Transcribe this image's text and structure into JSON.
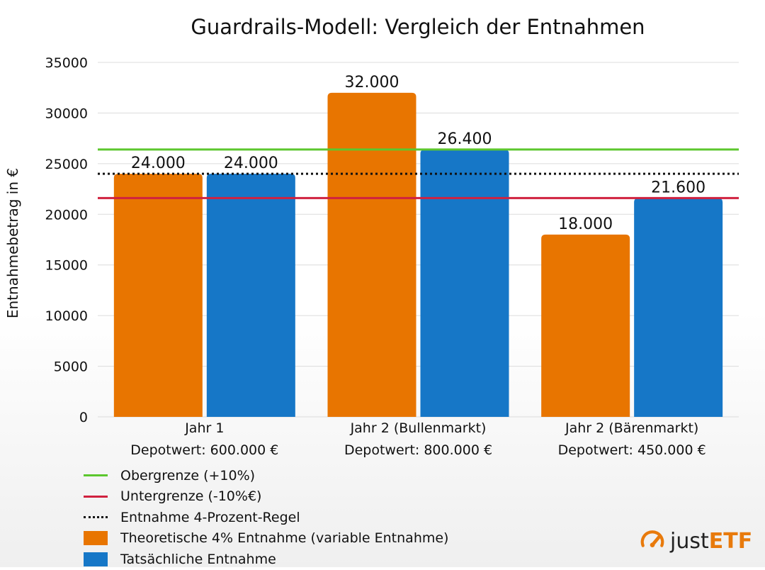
{
  "chart_data": {
    "type": "bar",
    "title": "Guardrails-Modell: Vergleich der Entnahmen",
    "ylabel": "Entnahmebetrag in €",
    "xlabel": "",
    "ylim": [
      0,
      35000
    ],
    "yticks": [
      0,
      5000,
      10000,
      15000,
      20000,
      25000,
      30000,
      35000
    ],
    "grid": true,
    "categories": [
      "Jahr 1",
      "Jahr 2 (Bullenmarkt)",
      "Jahr 2 (Bärenmarkt)"
    ],
    "category_sublabels": [
      "Depotwert: 600.000 €",
      "Depotwert: 800.000 €",
      "Depotwert: 450.000 €"
    ],
    "series": [
      {
        "name": "Theoretische 4% Entnahme (variable Entnahme)",
        "color": "#e87500",
        "values": [
          24000,
          32000,
          18000
        ],
        "labels": [
          "24.000",
          "32.000",
          "18.000"
        ]
      },
      {
        "name": "Tatsächliche Entnahme",
        "color": "#1677c7",
        "values": [
          24000,
          26400,
          21600
        ],
        "labels": [
          "24.000",
          "26.400",
          "21.600"
        ]
      }
    ],
    "reference_lines": [
      {
        "name": "Obergrenze (+10%)",
        "value": 26400,
        "color": "#5cc72e",
        "style": "solid"
      },
      {
        "name": "Untergrenze (-10%€)",
        "value": 21600,
        "color": "#d0213f",
        "style": "solid"
      },
      {
        "name": "Entnahme 4-Prozent-Regel",
        "value": 24000,
        "color": "#111111",
        "style": "dotted"
      }
    ],
    "legend_placement": "bottom-left"
  },
  "branding": {
    "logo_text_a": "just",
    "logo_text_b": "ETF",
    "logo_icon": "speedometer-icon",
    "accent_color": "#e87a0c"
  }
}
